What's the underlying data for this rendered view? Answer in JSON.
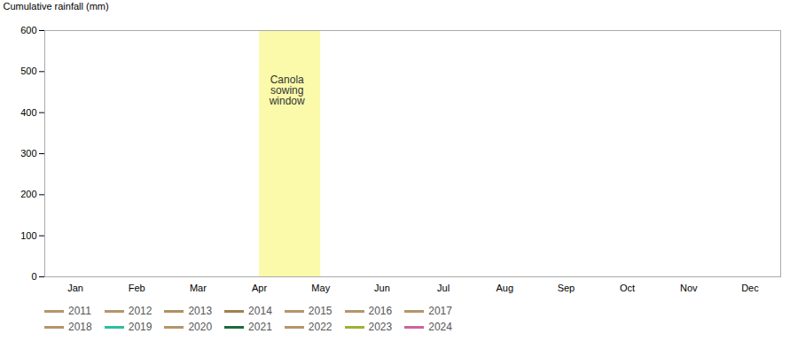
{
  "chart_data": {
    "type": "line",
    "y_label": "Cumulative rainfall (mm)",
    "categories": [
      "Jan",
      "Feb",
      "Mar",
      "Apr",
      "May",
      "Jun",
      "Jul",
      "Aug",
      "Sep",
      "Oct",
      "Nov",
      "Dec"
    ],
    "ylim": [
      0,
      600
    ],
    "yticks": [
      0,
      100,
      200,
      300,
      400,
      500,
      600
    ],
    "grid": false,
    "legend": "bottom",
    "shaded_region": {
      "start": 3.0,
      "end": 4.0,
      "color": "#FAFAAA"
    },
    "annotations": [
      {
        "text": "Canola\nsowing\nwindow",
        "x": 3.45,
        "y": 490
      }
    ],
    "series": [
      {
        "name": "2011",
        "color": "#b5956a",
        "values": [
          null,
          null,
          null,
          null,
          null,
          null,
          null,
          null,
          null,
          null,
          null,
          null
        ]
      },
      {
        "name": "2012",
        "color": "#b5956a",
        "values": [
          null,
          null,
          null,
          null,
          null,
          null,
          null,
          null,
          null,
          null,
          null,
          null
        ]
      },
      {
        "name": "2013",
        "color": "#b09060",
        "values": [
          null,
          null,
          null,
          null,
          null,
          null,
          null,
          null,
          null,
          null,
          null,
          null
        ]
      },
      {
        "name": "2014",
        "color": "#a08050",
        "values": [
          null,
          null,
          null,
          null,
          null,
          null,
          null,
          null,
          null,
          null,
          null,
          null
        ]
      },
      {
        "name": "2015",
        "color": "#b5956a",
        "values": [
          null,
          null,
          null,
          null,
          null,
          null,
          null,
          null,
          null,
          null,
          null,
          null
        ]
      },
      {
        "name": "2016",
        "color": "#b5956a",
        "values": [
          null,
          null,
          null,
          null,
          null,
          null,
          null,
          null,
          null,
          null,
          null,
          null
        ]
      },
      {
        "name": "2017",
        "color": "#b5956a",
        "values": [
          null,
          null,
          null,
          null,
          null,
          null,
          null,
          null,
          null,
          null,
          null,
          null
        ]
      },
      {
        "name": "2018",
        "color": "#b5956a",
        "values": [
          null,
          null,
          null,
          null,
          null,
          null,
          null,
          null,
          null,
          null,
          null,
          null
        ]
      },
      {
        "name": "2019",
        "color": "#2bbfa0",
        "values": [
          null,
          null,
          null,
          null,
          null,
          null,
          null,
          null,
          null,
          null,
          null,
          null
        ]
      },
      {
        "name": "2020",
        "color": "#b5956a",
        "values": [
          null,
          null,
          null,
          null,
          null,
          null,
          null,
          null,
          null,
          null,
          null,
          null
        ]
      },
      {
        "name": "2021",
        "color": "#1a6b3a",
        "values": [
          null,
          null,
          null,
          null,
          null,
          null,
          null,
          null,
          null,
          null,
          null,
          null
        ]
      },
      {
        "name": "2022",
        "color": "#b5956a",
        "values": [
          null,
          null,
          null,
          null,
          null,
          null,
          null,
          null,
          null,
          null,
          null,
          null
        ]
      },
      {
        "name": "2023",
        "color": "#a0b030",
        "values": [
          null,
          null,
          null,
          null,
          null,
          null,
          null,
          null,
          null,
          null,
          null,
          null
        ]
      },
      {
        "name": "2024",
        "color": "#d060a0",
        "values": [
          null,
          null,
          null,
          null,
          null,
          null,
          null,
          null,
          null,
          null,
          null,
          null
        ]
      }
    ]
  }
}
